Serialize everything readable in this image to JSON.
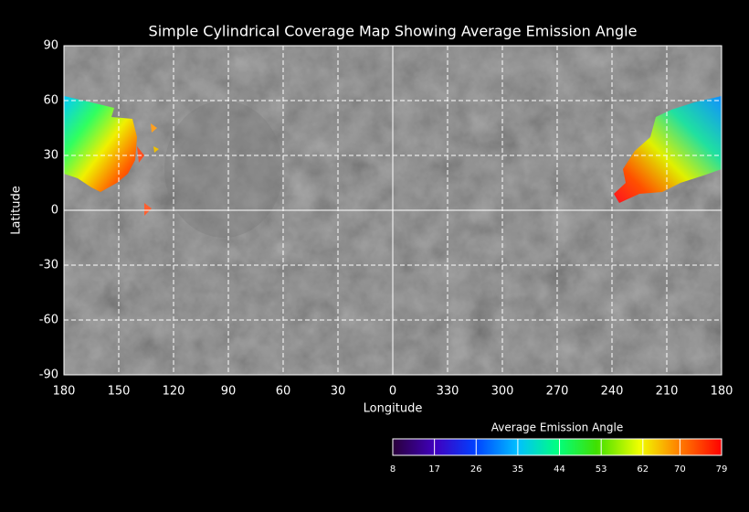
{
  "chart_data": {
    "type": "map",
    "title": "Simple Cylindrical Coverage Map Showing Average Emission Angle",
    "xlabel": "Longitude",
    "ylabel": "Latitude",
    "xlim": [
      180,
      -180
    ],
    "xticks": [
      180,
      150,
      120,
      90,
      60,
      30,
      0,
      {
        "value": -30,
        "label": "330"
      },
      {
        "value": -60,
        "label": "300"
      },
      {
        "value": -90,
        "label": "270"
      },
      {
        "value": -120,
        "label": "240"
      },
      {
        "value": -150,
        "label": "210"
      },
      {
        "value": -180,
        "label": "180"
      }
    ],
    "ylim": [
      -90,
      90
    ],
    "yticks": [
      -90,
      -60,
      -30,
      0,
      30,
      60,
      90
    ],
    "grid": true,
    "colorbar": {
      "title": "Average Emission Angle",
      "clim": [
        8,
        79
      ],
      "ticks": [
        8,
        17,
        26,
        35,
        44,
        53,
        62,
        70,
        79
      ]
    }
  }
}
